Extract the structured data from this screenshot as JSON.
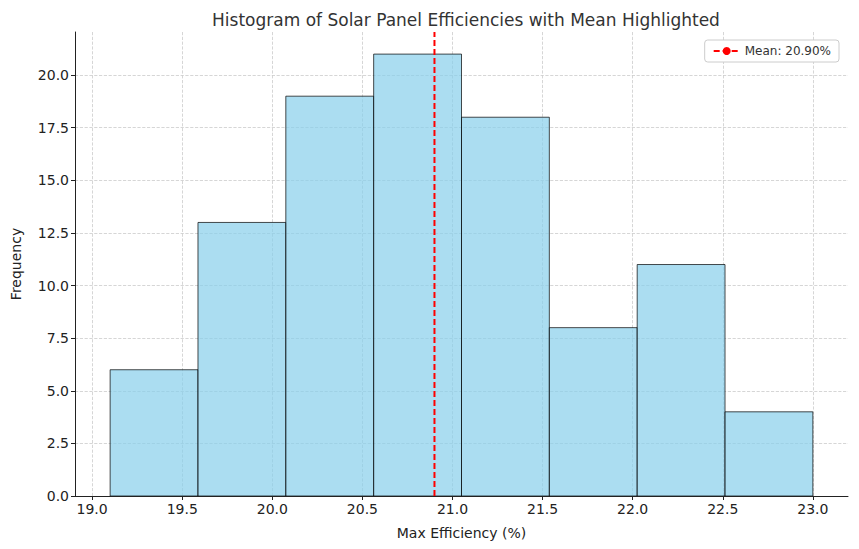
{
  "chart_data": {
    "type": "histogram",
    "title": "Histogram of Solar Panel Efficiencies with Mean Highlighted",
    "x_label": "Max Efficiency (%)",
    "y_label": "Frequency",
    "bins": [
      19.1,
      19.5875,
      20.075,
      20.5625,
      21.05,
      21.5375,
      22.025,
      22.5125,
      23.0
    ],
    "values": [
      6,
      13,
      19,
      21,
      18,
      8,
      11,
      4
    ],
    "color": "#87ceeb",
    "mean_line": {
      "value": 20.9,
      "label": "Mean: 20.90%",
      "color": "#ff0000",
      "line_style": "dashed"
    },
    "xlim": [
      18.905,
      23.195
    ],
    "xticks": [
      {
        "value": 19,
        "label": "19.0"
      },
      {
        "value": 19.5,
        "label": "19.5"
      },
      {
        "value": 20,
        "label": "20.0"
      },
      {
        "value": 20.5,
        "label": "20.5"
      },
      {
        "value": 21,
        "label": "21.0"
      },
      {
        "value": 21.5,
        "label": "21.5"
      },
      {
        "value": 22,
        "label": "22.0"
      },
      {
        "value": 22.5,
        "label": "22.5"
      },
      {
        "value": 23,
        "label": "23.0"
      }
    ],
    "ylim": [
      0,
      22.05
    ],
    "yticks": [
      {
        "value": 0,
        "label": "0.0"
      },
      {
        "value": 2.5,
        "label": "2.5"
      },
      {
        "value": 5,
        "label": "5.0"
      },
      {
        "value": 7.5,
        "label": "7.5"
      },
      {
        "value": 10,
        "label": "10.0"
      },
      {
        "value": 12.5,
        "label": "12.5"
      },
      {
        "value": 15,
        "label": "15.0"
      },
      {
        "value": 17.5,
        "label": "17.5"
      },
      {
        "value": 20,
        "label": "20.0"
      }
    ],
    "grid": true,
    "legend": "upper right"
  }
}
